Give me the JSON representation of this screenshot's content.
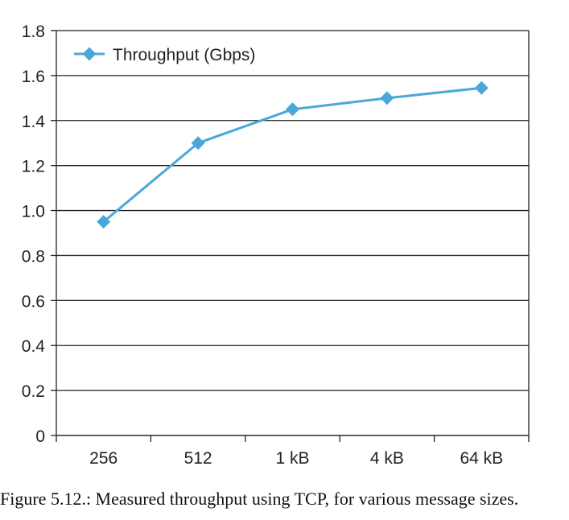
{
  "chart_data": {
    "type": "line",
    "categories": [
      "256",
      "512",
      "1 kB",
      "4 kB",
      "64 kB"
    ],
    "series": [
      {
        "name": "Throughput (Gbps)",
        "values": [
          0.95,
          1.3,
          1.45,
          1.5,
          1.545
        ],
        "color": "#4aa8d8",
        "marker": "diamond"
      }
    ],
    "ylim": [
      0,
      1.8
    ],
    "yticks": [
      "0",
      "0.2",
      "0.4",
      "0.6",
      "0.8",
      "1.0",
      "1.2",
      "1.4",
      "1.6",
      "1.8"
    ],
    "grid": "horizontal",
    "legend": "top-left"
  },
  "caption": "Figure 5.12.: Measured throughput using TCP, for various message sizes."
}
